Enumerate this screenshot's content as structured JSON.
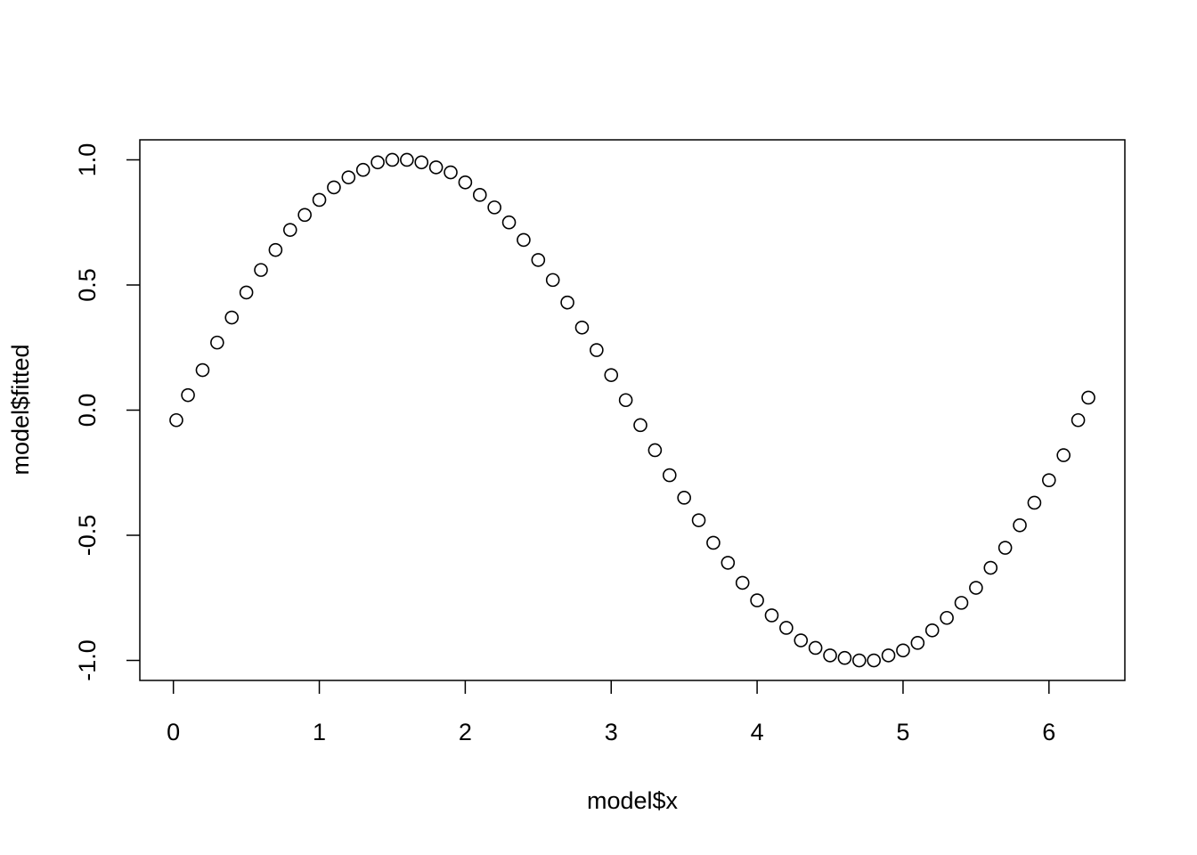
{
  "chart_data": {
    "type": "scatter",
    "x_label": "model$x",
    "y_label": "model$fitted",
    "x": [
      0.02,
      0.1,
      0.2,
      0.3,
      0.4,
      0.5,
      0.6,
      0.7,
      0.8,
      0.9,
      1.0,
      1.1,
      1.2,
      1.3,
      1.4,
      1.5,
      1.6,
      1.7,
      1.8,
      1.9,
      2.0,
      2.1,
      2.2,
      2.3,
      2.4,
      2.5,
      2.6,
      2.7,
      2.8,
      2.9,
      3.0,
      3.1,
      3.2,
      3.3,
      3.4,
      3.5,
      3.6,
      3.7,
      3.8,
      3.9,
      4.0,
      4.1,
      4.2,
      4.3,
      4.4,
      4.5,
      4.6,
      4.7,
      4.8,
      4.9,
      5.0,
      5.1,
      5.2,
      5.3,
      5.4,
      5.5,
      5.6,
      5.7,
      5.8,
      5.9,
      6.0,
      6.1,
      6.2,
      6.27
    ],
    "values": [
      -0.04,
      0.06,
      0.16,
      0.27,
      0.37,
      0.47,
      0.56,
      0.64,
      0.72,
      0.78,
      0.84,
      0.89,
      0.93,
      0.96,
      0.99,
      1.0,
      1.0,
      0.99,
      0.97,
      0.95,
      0.91,
      0.86,
      0.81,
      0.75,
      0.68,
      0.6,
      0.52,
      0.43,
      0.33,
      0.24,
      0.14,
      0.04,
      -0.06,
      -0.16,
      -0.26,
      -0.35,
      -0.44,
      -0.53,
      -0.61,
      -0.69,
      -0.76,
      -0.82,
      -0.87,
      -0.92,
      -0.95,
      -0.98,
      -0.99,
      -1.0,
      -1.0,
      -0.98,
      -0.96,
      -0.93,
      -0.88,
      -0.83,
      -0.77,
      -0.71,
      -0.63,
      -0.55,
      -0.46,
      -0.37,
      -0.28,
      -0.18,
      -0.04,
      0.05
    ],
    "color": "#000000",
    "xlim": [
      -0.23,
      6.52
    ],
    "ylim": [
      -1.08,
      1.08
    ],
    "xticks": [
      0,
      1,
      2,
      3,
      4,
      5,
      6
    ],
    "yticks": [
      {
        "value": -1,
        "label": "-1.0"
      },
      {
        "value": -0.5,
        "label": "-0.5"
      },
      {
        "value": 0,
        "label": "0.0"
      },
      {
        "value": 0.5,
        "label": "0.5"
      },
      {
        "value": 1,
        "label": "1.0"
      }
    ]
  }
}
